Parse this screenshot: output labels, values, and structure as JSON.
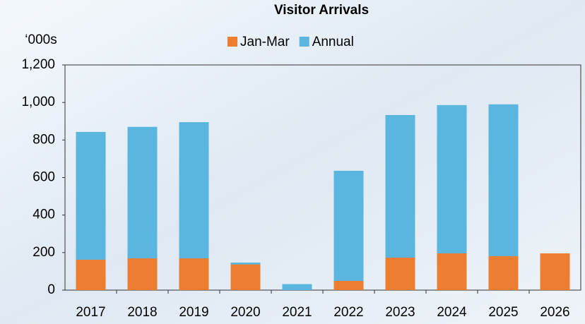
{
  "chart_data": {
    "type": "bar",
    "title": "Visitor Arrivals",
    "y_unit": "‘000s",
    "categories": [
      "2017",
      "2018",
      "2019",
      "2020",
      "2021",
      "2022",
      "2023",
      "2024",
      "2025",
      "2026"
    ],
    "series": [
      {
        "name": "Jan-Mar",
        "color": "#ed7d31",
        "values": [
          162,
          169,
          169,
          137,
          null,
          49,
          173,
          196,
          181,
          196
        ]
      },
      {
        "name": "Annual",
        "color": "#5ab6de",
        "values": [
          843,
          870,
          895,
          147,
          32,
          636,
          933,
          986,
          990,
          null
        ]
      }
    ],
    "ylim": [
      0,
      1200
    ],
    "yticks": [
      0,
      200,
      400,
      600,
      800,
      {
        "value": 1000,
        "label": "1,000"
      },
      {
        "value": 1200,
        "label": "1,200"
      }
    ]
  }
}
